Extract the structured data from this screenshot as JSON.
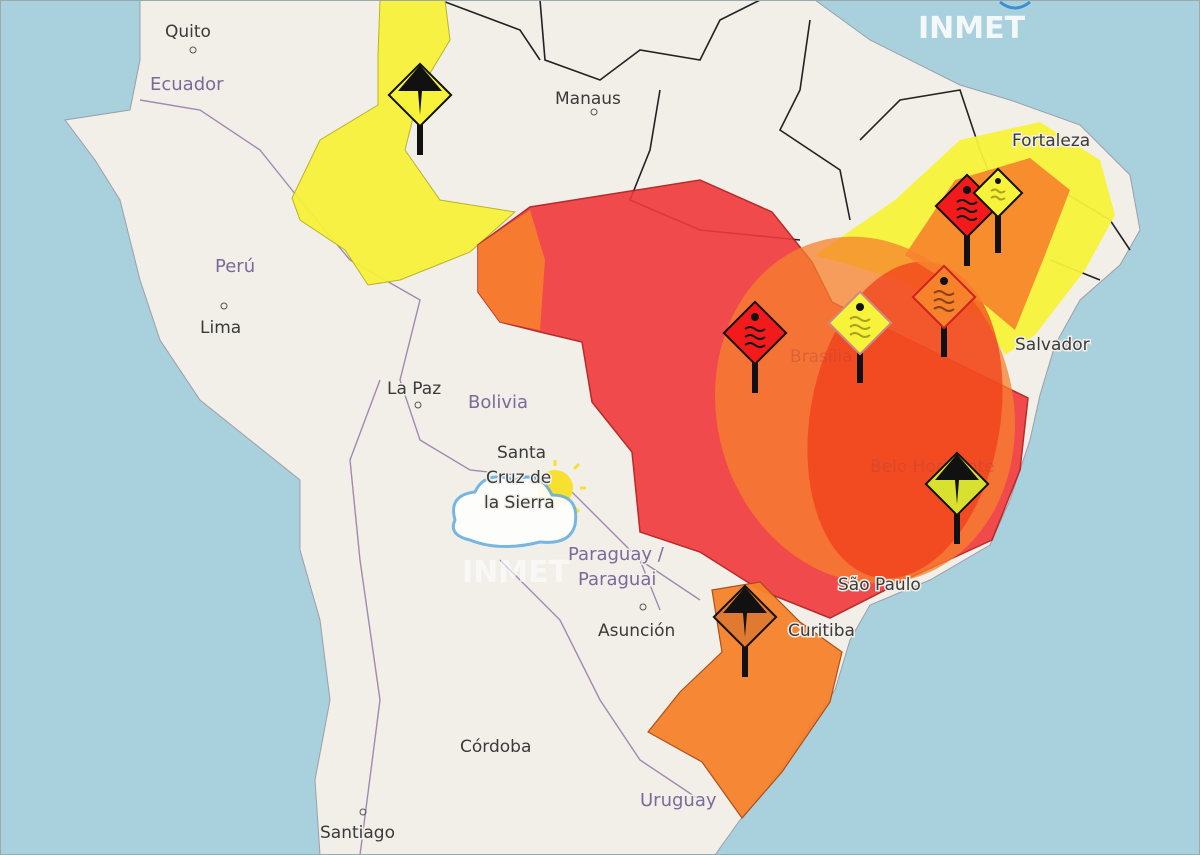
{
  "logo": {
    "text": "INMET"
  },
  "watermark": {
    "text": "INMET"
  },
  "colors": {
    "ocean": "#a9d0dd",
    "land": "#f2efe9",
    "alert_yellow": "#f7f23a",
    "alert_orange": "#f7822c",
    "alert_red": "#f0393c",
    "alert_overlap_red": "#f23a1a"
  },
  "places": {
    "quito": "Quito",
    "ecuador": "Ecuador",
    "manaus": "Manaus",
    "fortaleza": "Fortaleza",
    "peru": "Perú",
    "lima": "Lima",
    "la_paz": "La Paz",
    "bolivia": "Bolivia",
    "santa_cruz_1": "Santa",
    "santa_cruz_2": "Cruz de",
    "santa_cruz_3": "la Sierra",
    "salvador": "Salvador",
    "paraguay_1": "Paraguay /",
    "paraguay_2": "Paraguai",
    "asuncion": "Asunción",
    "sao_paulo": "São Paulo",
    "curitiba": "Curitiba",
    "cordoba": "Córdoba",
    "uruguay": "Uruguay",
    "santiago": "Santiago",
    "brasilia": "Brasília",
    "belo_horizonte": "Belo Horizonte"
  },
  "alert_icons": [
    {
      "type": "storm",
      "level": "yellow"
    },
    {
      "type": "heat-wave",
      "level": "red"
    },
    {
      "type": "heat-wave",
      "level": "yellow"
    },
    {
      "type": "heat-wave",
      "level": "orange"
    },
    {
      "type": "heat-wave",
      "level": "red"
    },
    {
      "type": "heat-wave",
      "level": "yellow"
    },
    {
      "type": "storm",
      "level": "yellow"
    },
    {
      "type": "storm",
      "level": "orange"
    }
  ],
  "weather_icon": "sun-behind-cloud-icon"
}
